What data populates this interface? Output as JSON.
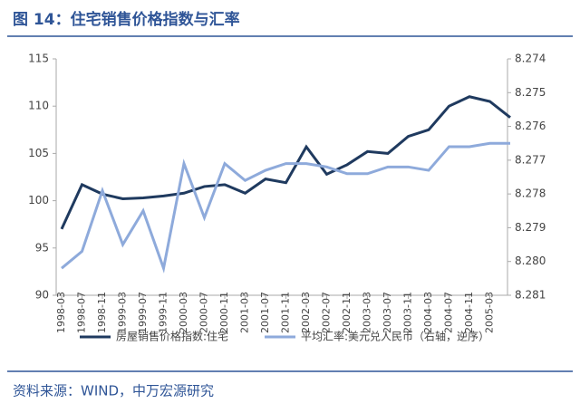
{
  "chart_data": {
    "type": "line",
    "title": "图 14：住宅销售价格指数与汇率",
    "source": "资料来源：WIND，中万宏源研究",
    "categories": [
      "1998-03",
      "1998-07",
      "1998-11",
      "1999-03",
      "1999-07",
      "1999-11",
      "2000-03",
      "2000-07",
      "2000-11",
      "2001-03",
      "2001-07",
      "2001-11",
      "2002-03",
      "2002-07",
      "2002-11",
      "2003-03",
      "2003-07",
      "2003-11",
      "2004-03",
      "2004-07",
      "2004-11",
      "2005-03",
      null
    ],
    "series": [
      {
        "name": "房屋销售价格指数:住宅",
        "color": "#1f3a5f",
        "values": [
          97,
          101.7,
          100.7,
          100.2,
          100.3,
          100.5,
          100.8,
          101.5,
          101.7,
          100.8,
          102.3,
          101.9,
          105.7,
          102.8,
          103.8,
          105.2,
          105,
          106.8,
          107.5,
          110,
          111,
          110.5,
          108.8
        ]
      },
      {
        "name": "平均汇率:美元兑人民币（右轴，逆序）",
        "color": "#8eaadb",
        "axis": "y2",
        "values": [
          8.2802,
          8.2797,
          8.2779,
          8.2795,
          8.2785,
          8.2802,
          8.2771,
          8.2787,
          8.2771,
          8.2776,
          8.2773,
          8.2771,
          8.2771,
          8.2772,
          8.2774,
          8.2774,
          8.2772,
          8.2772,
          8.2773,
          8.2766,
          8.2766,
          8.2765,
          8.2765
        ]
      }
    ],
    "ylim": [
      90,
      115
    ],
    "yticks": [
      90,
      95,
      100,
      105,
      110,
      115
    ],
    "y2lim": [
      8.281,
      8.274
    ],
    "y2_reversed": true,
    "y2ticks": [
      8.274,
      8.275,
      8.276,
      8.277,
      8.278,
      8.279,
      {
        "value": 8.28,
        "label": "8.280"
      },
      8.281
    ],
    "legend": "bottom"
  }
}
